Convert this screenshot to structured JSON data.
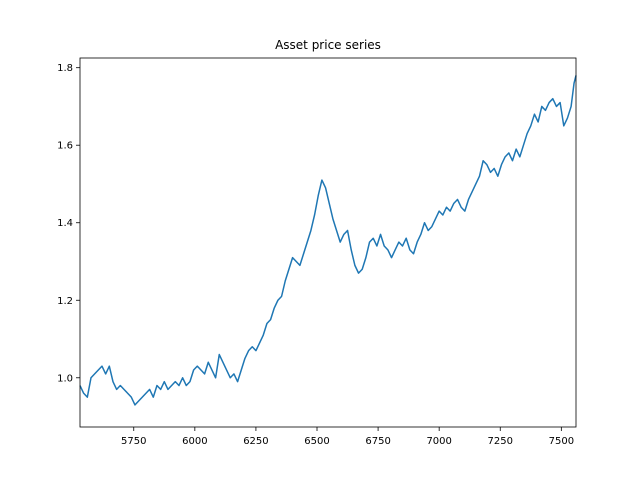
{
  "chart_data": {
    "type": "line",
    "title": "Asset price series",
    "xlabel": "",
    "ylabel": "",
    "xlim": [
      5530,
      7560
    ],
    "ylim": [
      0.873,
      1.825
    ],
    "grid": false,
    "legend": "none",
    "xticks": [
      5750,
      6000,
      6250,
      6500,
      6750,
      7000,
      7250,
      7500
    ],
    "xtick_labels": [
      "5750",
      "6000",
      "6250",
      "6500",
      "6750",
      "7000",
      "7250",
      "7500"
    ],
    "yticks": [
      1.0,
      1.2,
      1.4,
      1.6,
      1.8
    ],
    "ytick_labels": [
      "1.0",
      "1.2",
      "1.4",
      "1.6",
      "1.8"
    ],
    "line_color": "#1f77b4",
    "series": [
      {
        "x": [
          5530,
          5545,
          5560,
          5575,
          5590,
          5605,
          5620,
          5635,
          5650,
          5665,
          5680,
          5695,
          5710,
          5725,
          5740,
          5755,
          5770,
          5785,
          5800,
          5815,
          5830,
          5845,
          5860,
          5875,
          5890,
          5905,
          5920,
          5935,
          5950,
          5965,
          5980,
          5995,
          6010,
          6025,
          6040,
          6055,
          6070,
          6085,
          6100,
          6115,
          6130,
          6145,
          6160,
          6175,
          6190,
          6205,
          6220,
          6235,
          6250,
          6265,
          6280,
          6295,
          6310,
          6325,
          6340,
          6355,
          6370,
          6385,
          6400,
          6415,
          6430,
          6445,
          6460,
          6475,
          6490,
          6505,
          6520,
          6535,
          6550,
          6565,
          6580,
          6595,
          6610,
          6625,
          6640,
          6655,
          6670,
          6685,
          6700,
          6715,
          6730,
          6745,
          6760,
          6775,
          6790,
          6805,
          6820,
          6835,
          6850,
          6865,
          6880,
          6895,
          6910,
          6925,
          6940,
          6955,
          6970,
          6985,
          7000,
          7015,
          7030,
          7045,
          7060,
          7075,
          7090,
          7105,
          7120,
          7135,
          7150,
          7165,
          7180,
          7195,
          7210,
          7225,
          7240,
          7255,
          7270,
          7285,
          7300,
          7315,
          7330,
          7345,
          7360,
          7375,
          7390,
          7405,
          7420,
          7435,
          7450,
          7465,
          7480,
          7495,
          7510,
          7525,
          7540,
          7552,
          7560
        ],
        "y": [
          0.98,
          0.96,
          0.95,
          1.0,
          1.01,
          1.02,
          1.03,
          1.01,
          1.03,
          0.99,
          0.97,
          0.98,
          0.97,
          0.96,
          0.95,
          0.93,
          0.94,
          0.95,
          0.96,
          0.97,
          0.95,
          0.98,
          0.97,
          0.99,
          0.97,
          0.98,
          0.99,
          0.98,
          1.0,
          0.98,
          0.99,
          1.02,
          1.03,
          1.02,
          1.01,
          1.04,
          1.02,
          1.0,
          1.06,
          1.04,
          1.02,
          1.0,
          1.01,
          0.99,
          1.02,
          1.05,
          1.07,
          1.08,
          1.07,
          1.09,
          1.11,
          1.14,
          1.15,
          1.18,
          1.2,
          1.21,
          1.25,
          1.28,
          1.31,
          1.3,
          1.29,
          1.32,
          1.35,
          1.38,
          1.42,
          1.47,
          1.51,
          1.49,
          1.45,
          1.41,
          1.38,
          1.35,
          1.37,
          1.38,
          1.33,
          1.29,
          1.27,
          1.28,
          1.31,
          1.35,
          1.36,
          1.34,
          1.37,
          1.34,
          1.33,
          1.31,
          1.33,
          1.35,
          1.34,
          1.36,
          1.33,
          1.32,
          1.35,
          1.37,
          1.4,
          1.38,
          1.39,
          1.41,
          1.43,
          1.42,
          1.44,
          1.43,
          1.45,
          1.46,
          1.44,
          1.43,
          1.46,
          1.48,
          1.5,
          1.52,
          1.56,
          1.55,
          1.53,
          1.54,
          1.52,
          1.55,
          1.57,
          1.58,
          1.56,
          1.59,
          1.57,
          1.6,
          1.63,
          1.65,
          1.68,
          1.66,
          1.7,
          1.69,
          1.71,
          1.72,
          1.7,
          1.71,
          1.65,
          1.67,
          1.7,
          1.76,
          1.78
        ]
      }
    ]
  }
}
